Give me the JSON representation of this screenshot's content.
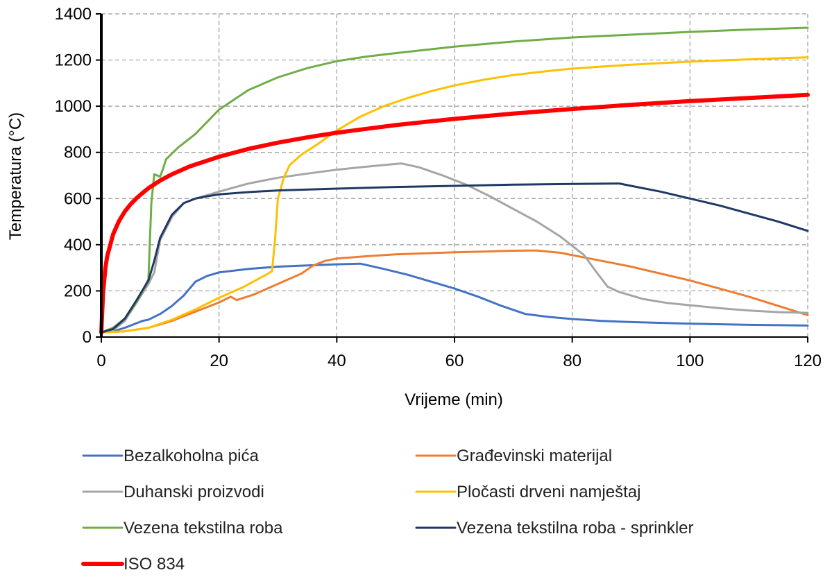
{
  "chart_data": {
    "type": "line",
    "title": "",
    "xlabel": "Vrijeme (min)",
    "ylabel": "Temperatura (°C)",
    "xlim": [
      0,
      120
    ],
    "ylim": [
      0,
      1400
    ],
    "xticks": [
      0,
      20,
      40,
      60,
      80,
      100,
      120
    ],
    "yticks": [
      0,
      200,
      400,
      600,
      800,
      1000,
      1200,
      1400
    ],
    "grid": true,
    "legend_position": "bottom",
    "series": [
      {
        "name": "Bezalkoholna pića",
        "color": "#4472C4",
        "width": 3,
        "points": [
          [
            0,
            20
          ],
          [
            2,
            25
          ],
          [
            4,
            40
          ],
          [
            6,
            60
          ],
          [
            7,
            70
          ],
          [
            8,
            75
          ],
          [
            10,
            100
          ],
          [
            12,
            135
          ],
          [
            14,
            180
          ],
          [
            16,
            240
          ],
          [
            18,
            265
          ],
          [
            20,
            280
          ],
          [
            25,
            295
          ],
          [
            30,
            305
          ],
          [
            35,
            310
          ],
          [
            40,
            315
          ],
          [
            44,
            318
          ],
          [
            48,
            295
          ],
          [
            52,
            270
          ],
          [
            56,
            240
          ],
          [
            60,
            210
          ],
          [
            64,
            175
          ],
          [
            68,
            135
          ],
          [
            72,
            100
          ],
          [
            76,
            87
          ],
          [
            80,
            78
          ],
          [
            85,
            70
          ],
          [
            90,
            65
          ],
          [
            100,
            58
          ],
          [
            110,
            53
          ],
          [
            120,
            50
          ]
        ]
      },
      {
        "name": "Građevinski materijal",
        "color": "#ED7D31",
        "width": 3,
        "points": [
          [
            0,
            20
          ],
          [
            4,
            25
          ],
          [
            8,
            40
          ],
          [
            12,
            70
          ],
          [
            16,
            110
          ],
          [
            20,
            150
          ],
          [
            22,
            175
          ],
          [
            23,
            160
          ],
          [
            26,
            185
          ],
          [
            30,
            230
          ],
          [
            34,
            275
          ],
          [
            36,
            310
          ],
          [
            38,
            330
          ],
          [
            40,
            340
          ],
          [
            45,
            350
          ],
          [
            50,
            358
          ],
          [
            55,
            363
          ],
          [
            60,
            367
          ],
          [
            65,
            370
          ],
          [
            70,
            374
          ],
          [
            74,
            375
          ],
          [
            78,
            365
          ],
          [
            82,
            345
          ],
          [
            86,
            325
          ],
          [
            90,
            305
          ],
          [
            95,
            275
          ],
          [
            100,
            245
          ],
          [
            105,
            210
          ],
          [
            110,
            175
          ],
          [
            115,
            135
          ],
          [
            120,
            95
          ]
        ]
      },
      {
        "name": "Duhanski proizvodi",
        "color": "#A5A5A5",
        "width": 3,
        "points": [
          [
            0,
            20
          ],
          [
            2,
            30
          ],
          [
            4,
            70
          ],
          [
            6,
            150
          ],
          [
            8,
            230
          ],
          [
            9,
            280
          ],
          [
            10,
            420
          ],
          [
            12,
            520
          ],
          [
            14,
            580
          ],
          [
            16,
            600
          ],
          [
            20,
            630
          ],
          [
            25,
            665
          ],
          [
            30,
            690
          ],
          [
            35,
            708
          ],
          [
            40,
            725
          ],
          [
            45,
            738
          ],
          [
            50,
            750
          ],
          [
            51,
            752
          ],
          [
            54,
            735
          ],
          [
            58,
            700
          ],
          [
            62,
            660
          ],
          [
            66,
            610
          ],
          [
            70,
            555
          ],
          [
            74,
            500
          ],
          [
            78,
            435
          ],
          [
            82,
            355
          ],
          [
            84,
            285
          ],
          [
            86,
            218
          ],
          [
            88,
            195
          ],
          [
            92,
            165
          ],
          [
            96,
            148
          ],
          [
            100,
            138
          ],
          [
            105,
            125
          ],
          [
            110,
            115
          ],
          [
            115,
            108
          ],
          [
            120,
            105
          ]
        ]
      },
      {
        "name": "Pločasti drveni namještaj",
        "color": "#FFC000",
        "width": 3,
        "points": [
          [
            0,
            20
          ],
          [
            4,
            25
          ],
          [
            8,
            40
          ],
          [
            12,
            75
          ],
          [
            16,
            120
          ],
          [
            20,
            170
          ],
          [
            24,
            215
          ],
          [
            28,
            270
          ],
          [
            29,
            285
          ],
          [
            29.5,
            420
          ],
          [
            30,
            600
          ],
          [
            31,
            690
          ],
          [
            32,
            745
          ],
          [
            34,
            790
          ],
          [
            37,
            840
          ],
          [
            40,
            895
          ],
          [
            44,
            955
          ],
          [
            48,
            1000
          ],
          [
            52,
            1035
          ],
          [
            56,
            1065
          ],
          [
            60,
            1090
          ],
          [
            65,
            1115
          ],
          [
            70,
            1135
          ],
          [
            75,
            1150
          ],
          [
            80,
            1163
          ],
          [
            90,
            1180
          ],
          [
            100,
            1193
          ],
          [
            110,
            1203
          ],
          [
            120,
            1212
          ]
        ]
      },
      {
        "name": "Vezena tekstilna roba",
        "color": "#70AD47",
        "width": 3,
        "points": [
          [
            0,
            20
          ],
          [
            2,
            40
          ],
          [
            4,
            80
          ],
          [
            6,
            150
          ],
          [
            8,
            250
          ],
          [
            8.5,
            580
          ],
          [
            9,
            705
          ],
          [
            10,
            695
          ],
          [
            10.5,
            730
          ],
          [
            11,
            770
          ],
          [
            13,
            820
          ],
          [
            16,
            880
          ],
          [
            20,
            985
          ],
          [
            25,
            1070
          ],
          [
            30,
            1125
          ],
          [
            35,
            1165
          ],
          [
            40,
            1195
          ],
          [
            45,
            1215
          ],
          [
            50,
            1230
          ],
          [
            60,
            1258
          ],
          [
            70,
            1280
          ],
          [
            80,
            1298
          ],
          [
            90,
            1310
          ],
          [
            100,
            1322
          ],
          [
            110,
            1332
          ],
          [
            120,
            1340
          ]
        ]
      },
      {
        "name": "Vezena tekstilna roba - sprinkler",
        "color": "#203864",
        "width": 3,
        "points": [
          [
            0,
            20
          ],
          [
            2,
            35
          ],
          [
            4,
            80
          ],
          [
            6,
            160
          ],
          [
            8,
            245
          ],
          [
            9,
            330
          ],
          [
            10,
            430
          ],
          [
            12,
            530
          ],
          [
            14,
            580
          ],
          [
            16,
            600
          ],
          [
            18,
            610
          ],
          [
            20,
            618
          ],
          [
            25,
            628
          ],
          [
            30,
            635
          ],
          [
            40,
            643
          ],
          [
            50,
            650
          ],
          [
            60,
            655
          ],
          [
            70,
            660
          ],
          [
            80,
            663
          ],
          [
            88,
            665
          ],
          [
            90,
            655
          ],
          [
            95,
            630
          ],
          [
            100,
            600
          ],
          [
            105,
            570
          ],
          [
            110,
            535
          ],
          [
            115,
            500
          ],
          [
            120,
            460
          ]
        ]
      },
      {
        "name": "ISO 834",
        "color": "#FF0000",
        "width": 6,
        "points": [
          [
            0,
            20
          ],
          [
            0.3,
            190
          ],
          [
            0.7,
            300
          ],
          [
            1,
            350
          ],
          [
            2,
            445
          ],
          [
            3,
            502
          ],
          [
            4,
            544
          ],
          [
            5,
            576
          ],
          [
            6,
            602
          ],
          [
            7,
            624
          ],
          [
            8,
            645
          ],
          [
            10,
            678
          ],
          [
            12,
            705
          ],
          [
            15,
            739
          ],
          [
            20,
            781
          ],
          [
            25,
            815
          ],
          [
            30,
            842
          ],
          [
            35,
            865
          ],
          [
            40,
            885
          ],
          [
            45,
            902
          ],
          [
            50,
            918
          ],
          [
            55,
            932
          ],
          [
            60,
            945
          ],
          [
            70,
            968
          ],
          [
            80,
            988
          ],
          [
            90,
            1006
          ],
          [
            100,
            1022
          ],
          [
            110,
            1036
          ],
          [
            120,
            1049
          ]
        ]
      }
    ]
  }
}
